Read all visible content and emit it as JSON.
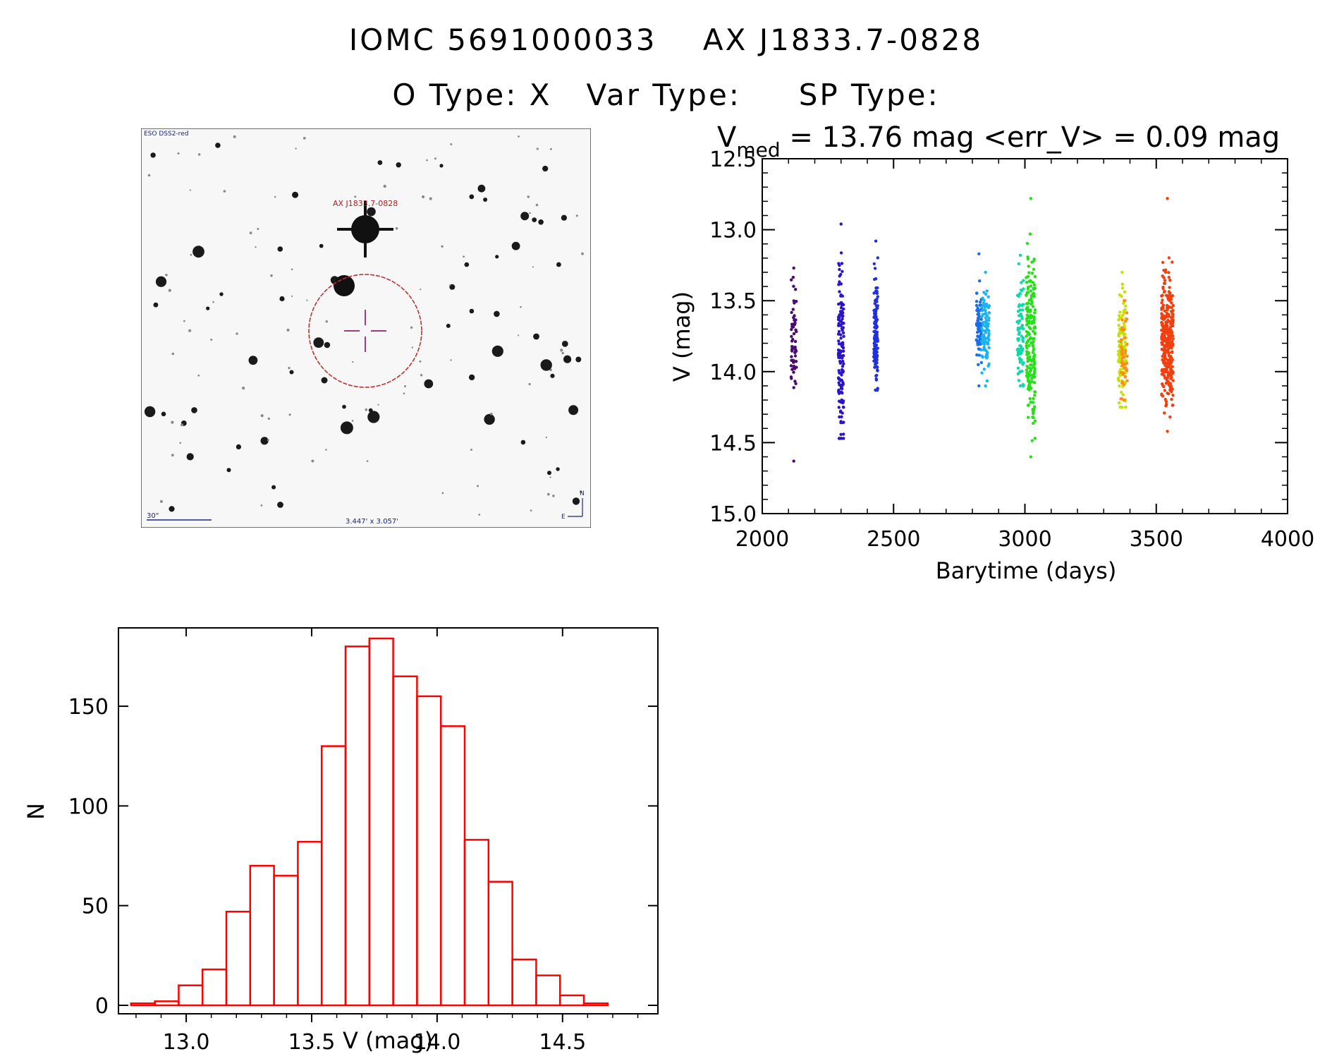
{
  "header": {
    "title_line1": "IOMC 5691000033    AX J1833.7-0828",
    "title_line2": "O Type: X   Var Type:     SP Type:"
  },
  "finder_chart": {
    "survey_label": "ESO DSS2-red",
    "target_label": "AX J1833.7-0828",
    "scale_label": "30\"",
    "fov_label": "3.447' x 3.057'",
    "north_label": "N",
    "east_label": "E",
    "circle_color": "#c0302f",
    "cross_color": "#9a3d7a"
  },
  "light_curve": {
    "stat_V": "V",
    "stat_sub": "med",
    "stat_rest": " = 13.76 mag <err_V> = 0.09 mag"
  },
  "chart_data": [
    {
      "type": "scatter",
      "name": "light-curve",
      "xlabel": "Barytime (days)",
      "ylabel": "V (mag)",
      "xlim": [
        2000,
        4000
      ],
      "ylim": [
        15.0,
        12.5
      ],
      "y_inverted": true,
      "xticks": [
        "2000",
        "2500",
        "3000",
        "3500",
        "4000"
      ],
      "yticks": [
        "12.5",
        "13.0",
        "13.5",
        "14.0",
        "14.5",
        "15.0"
      ],
      "color_scale": "time (rainbow: purple to red)",
      "groups": [
        {
          "x_range": [
            2110,
            2130
          ],
          "center": 13.75,
          "spread": 0.18,
          "low": 13.27,
          "high": 14.63,
          "n": 60,
          "color": "#4b0a6e"
        },
        {
          "x_range": [
            2290,
            2310
          ],
          "center": 13.85,
          "spread": 0.35,
          "low": 12.96,
          "high": 14.47,
          "n": 150,
          "color": "#2b14c8"
        },
        {
          "x_range": [
            2425,
            2440
          ],
          "center": 13.72,
          "spread": 0.2,
          "low": 13.08,
          "high": 14.13,
          "n": 140,
          "color": "#2030e0"
        },
        {
          "x_range": [
            2815,
            2835
          ],
          "center": 13.68,
          "spread": 0.12,
          "low": 13.17,
          "high": 14.1,
          "n": 70,
          "color": "#1a6ee8"
        },
        {
          "x_range": [
            2835,
            2865
          ],
          "center": 13.72,
          "spread": 0.14,
          "low": 13.3,
          "high": 14.1,
          "n": 90,
          "color": "#1ab4f0"
        },
        {
          "x_range": [
            2970,
            2995
          ],
          "center": 13.75,
          "spread": 0.2,
          "low": 13.18,
          "high": 14.1,
          "n": 80,
          "color": "#10d8a8"
        },
        {
          "x_range": [
            3005,
            3040
          ],
          "center": 13.8,
          "spread": 0.3,
          "low": 12.78,
          "high": 14.6,
          "n": 200,
          "color": "#28e01a"
        },
        {
          "x_range": [
            3355,
            3385
          ],
          "center": 13.85,
          "spread": 0.2,
          "low": 13.3,
          "high": 14.25,
          "n": 110,
          "color": "#c8e000"
        },
        {
          "x_range": [
            3365,
            3390
          ],
          "center": 13.9,
          "spread": 0.15,
          "low": 13.5,
          "high": 14.2,
          "n": 50,
          "color": "#ff8c1a"
        },
        {
          "x_range": [
            3520,
            3565
          ],
          "center": 13.78,
          "spread": 0.22,
          "low": 12.78,
          "high": 14.42,
          "n": 320,
          "color": "#f04010"
        }
      ]
    },
    {
      "type": "bar",
      "name": "histogram",
      "xlabel": "V (mag)",
      "ylabel": "N",
      "xlim": [
        12.73,
        14.88
      ],
      "ylim": [
        0,
        190
      ],
      "xticks": [
        "13.0",
        "13.5",
        "14.0",
        "14.5"
      ],
      "yticks": [
        "0",
        "50",
        "100",
        "150"
      ],
      "bin_width": 0.095,
      "bin_edges_start": 12.78,
      "values": [
        1,
        2,
        10,
        18,
        47,
        70,
        65,
        82,
        130,
        180,
        184,
        165,
        155,
        140,
        83,
        62,
        23,
        15,
        5,
        1
      ],
      "bar_color": "#ff0000"
    }
  ]
}
